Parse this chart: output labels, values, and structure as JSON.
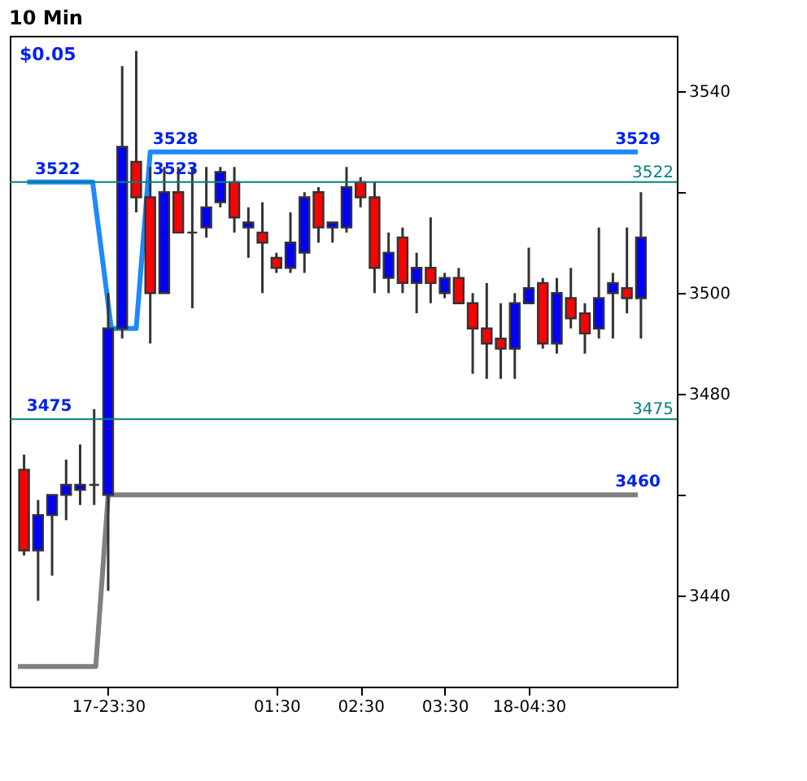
{
  "chart_data": {
    "type": "candlestick",
    "title": "10 Min",
    "x": [
      -1.5,
      -1.3333,
      -1.1667,
      -1,
      -0.8333,
      -0.6667,
      -0.5,
      -0.3333,
      -0.1667,
      0,
      0.1667,
      0.3333,
      0.5,
      0.6667,
      0.8333,
      1,
      1.1667,
      1.3333,
      1.5,
      1.6667,
      1.8333,
      2,
      2.1667,
      2.3333,
      2.5,
      2.6667,
      2.8333,
      3,
      3.1667,
      3.3333,
      3.5,
      3.6667,
      3.8333,
      4,
      4.1667,
      4.3333,
      4.5,
      4.6667,
      4.8333,
      5,
      5.1667,
      5.3333,
      5.5,
      5.6667,
      5.8333
    ],
    "ohlc": [
      [
        3465,
        3468,
        3448,
        3449
      ],
      [
        3449,
        3459,
        3439,
        3456
      ],
      [
        3456,
        3460,
        3444,
        3460
      ],
      [
        3460,
        3467,
        3455,
        3462
      ],
      [
        3461,
        3470,
        3458,
        3462
      ],
      [
        3462,
        3477,
        3458,
        3462
      ],
      [
        3460,
        3500,
        3441,
        3493
      ],
      [
        3493,
        3545,
        3491,
        3529
      ],
      [
        3526,
        3548,
        3516,
        3519
      ],
      [
        3519,
        3525,
        3490,
        3500
      ],
      [
        3500,
        3525,
        3500,
        3520
      ],
      [
        3520,
        3525,
        3512,
        3512
      ],
      [
        3512,
        3525,
        3497,
        3512
      ],
      [
        3513,
        3525,
        3511,
        3517
      ],
      [
        3518,
        3525,
        3517,
        3524
      ],
      [
        3522,
        3525,
        3512,
        3515
      ],
      [
        3513,
        3517,
        3507,
        3514
      ],
      [
        3512,
        3518,
        3500,
        3510
      ],
      [
        3507,
        3508,
        3504,
        3505
      ],
      [
        3505,
        3516,
        3504,
        3510
      ],
      [
        3508,
        3520,
        3504,
        3519
      ],
      [
        3520,
        3521,
        3510,
        3513
      ],
      [
        3513,
        3514,
        3510,
        3514
      ],
      [
        3513,
        3525,
        3512,
        3521
      ],
      [
        3522,
        3523,
        3517,
        3519
      ],
      [
        3519,
        3522,
        3500,
        3505
      ],
      [
        3503,
        3512,
        3500,
        3508
      ],
      [
        3511,
        3513,
        3500,
        3502
      ],
      [
        3502,
        3508,
        3496,
        3505
      ],
      [
        3505,
        3515,
        3498,
        3502
      ],
      [
        3500,
        3504,
        3499,
        3503
      ],
      [
        3503,
        3505,
        3498,
        3498
      ],
      [
        3498,
        3500,
        3484,
        3493
      ],
      [
        3493,
        3502,
        3483,
        3490
      ],
      [
        3491,
        3498,
        3483,
        3489
      ],
      [
        3489,
        3500,
        3483,
        3498
      ],
      [
        3498,
        3509,
        3498,
        3501
      ],
      [
        3502,
        3503,
        3489,
        3490
      ],
      [
        3490,
        3503,
        3488,
        3500
      ],
      [
        3499,
        3505,
        3493,
        3495
      ],
      [
        3496,
        3498,
        3488,
        3492
      ],
      [
        3493,
        3513,
        3491,
        3499
      ],
      [
        3500,
        3504,
        3491,
        3502
      ],
      [
        3501,
        3513,
        3496,
        3499
      ],
      [
        3499,
        3520,
        3491,
        3511
      ]
    ],
    "colors": [
      "#ff0000",
      "#0000ff",
      "#0000ff",
      "#0000ff",
      "#0000ff",
      "#333333",
      "#0000ff",
      "#0000ff",
      "#ff0000",
      "#ff0000",
      "#0000ff",
      "#ff0000",
      "#333333",
      "#0000ff",
      "#0000ff",
      "#ff0000",
      "#0000ff",
      "#ff0000",
      "#ff0000",
      "#0000ff",
      "#0000ff",
      "#ff0000",
      "#0000ff",
      "#0000ff",
      "#ff0000",
      "#ff0000",
      "#0000ff",
      "#ff0000",
      "#0000ff",
      "#ff0000",
      "#0000ff",
      "#ff0000",
      "#ff0000",
      "#ff0000",
      "#ff0000",
      "#0000ff",
      "#0000ff",
      "#ff0000",
      "#0000ff",
      "#ff0000",
      "#ff0000",
      "#0000ff",
      "#0000ff",
      "#ff0000",
      "#0000ff"
    ],
    "series": [
      {
        "type": "line",
        "color": "#1e88ff",
        "x": [
          -1.463,
          -0.685,
          -0.463,
          -0.167,
          0,
          5.796
        ],
        "values": [
          3522,
          3522,
          3493,
          3493,
          3528,
          3528
        ]
      },
      {
        "type": "line",
        "color": "#808080",
        "x": [
          -1.574,
          -0.648,
          -0.5,
          5.796
        ],
        "values": [
          3426,
          3426,
          3460,
          3460
        ]
      }
    ],
    "xlim": [
      -1.67,
      6.26
    ],
    "ylim": [
      3422,
      3551
    ],
    "xticks": [
      {
        "value": -0.5,
        "label": "17-23:30"
      },
      {
        "value": 1.5,
        "label": "01:30"
      },
      {
        "value": 2.5,
        "label": "02:30"
      },
      {
        "value": 3.5,
        "label": "03:30"
      },
      {
        "value": 4.5,
        "label": "18-04:30"
      }
    ],
    "yticks": [
      3440,
      {
        "value": 3460,
        "label": null
      },
      3480,
      3500,
      {
        "value": 3520,
        "label": null
      },
      3540
    ],
    "ref_lines": [
      {
        "axis": "y",
        "value": 3522,
        "label": "3522",
        "color": "#008080"
      },
      {
        "axis": "y",
        "value": 3475,
        "label": "3475",
        "color": "#008080"
      }
    ],
    "annotations": [
      "$0.05",
      {
        "text": "3522",
        "x": -1.1,
        "y": 3522
      },
      {
        "text": "3523",
        "x": 0.3,
        "y": 3522
      },
      {
        "text": "3528",
        "x": 0.3,
        "y": 3528
      },
      {
        "text": "3475",
        "x": -1.2,
        "y": 3475
      },
      {
        "text": "3529",
        "x": 5.796,
        "y": 3528
      },
      {
        "text": "3460",
        "x": 5.796,
        "y": 3460
      }
    ]
  }
}
